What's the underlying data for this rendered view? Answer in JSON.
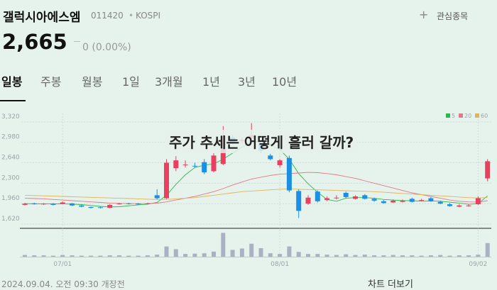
{
  "header": {
    "name": "갤럭시아에스엠",
    "code": "011420",
    "market": "KOSPI",
    "watch": "관심종목",
    "price": "2,665",
    "change": "0 (0.00%)"
  },
  "tabs": [
    "일봉",
    "주봉",
    "월봉",
    "1일",
    "3개월",
    "1년",
    "3년",
    "10년"
  ],
  "footer": {
    "timestamp": "2024.09.04. 오전 09:30 개장전",
    "more": "차트 더보기"
  },
  "chart_data": {
    "type": "candlestick",
    "annotation": "주가 추세는 어떻게 흘러 갈까?",
    "categories": [
      null,
      null,
      null,
      null,
      "07/01",
      null,
      null,
      null,
      null,
      null,
      null,
      null,
      null,
      null,
      null,
      null,
      null,
      null,
      null,
      null,
      null,
      null,
      null,
      null,
      null,
      null,
      null,
      "08/01",
      null,
      null,
      null,
      null,
      null,
      null,
      null,
      null,
      null,
      null,
      null,
      null,
      null,
      null,
      null,
      null,
      null,
      null,
      null,
      null,
      "09/02",
      null
    ],
    "open": [
      1940,
      1965,
      1950,
      1960,
      1960,
      1965,
      1930,
      1905,
      1900,
      1890,
      1950,
      1965,
      1960,
      1955,
      2100,
      2050,
      2550,
      2600,
      2590,
      2650,
      2500,
      2620,
      3060,
      3000,
      3050,
      2960,
      2760,
      2600,
      2720,
      2170,
      1960,
      2160,
      2020,
      2050,
      2140,
      2040,
      2100,
      2040,
      2000,
      1980,
      1990,
      2040,
      2010,
      2050,
      1990,
      1950,
      1910,
      1920,
      1950,
      2380
    ],
    "high": [
      1975,
      1975,
      1970,
      1970,
      1995,
      1970,
      1940,
      1910,
      1910,
      1950,
      1975,
      1975,
      1970,
      1975,
      2200,
      2700,
      2750,
      2680,
      2640,
      2700,
      2800,
      3250,
      3100,
      3060,
      3300,
      2980,
      2790,
      2700,
      2760,
      2200,
      2100,
      2180,
      2080,
      2100,
      2160,
      2100,
      2120,
      2060,
      2020,
      2030,
      2030,
      2060,
      2040,
      2070,
      2010,
      1970,
      1950,
      1950,
      2080,
      2700
    ],
    "low": [
      1930,
      1945,
      1940,
      1930,
      1955,
      1920,
      1900,
      1880,
      1880,
      1885,
      1945,
      1945,
      1940,
      1945,
      2030,
      2040,
      2500,
      2560,
      2560,
      2450,
      2480,
      2600,
      2950,
      2960,
      3020,
      2800,
      2680,
      2560,
      2150,
      1720,
      1940,
      1980,
      2000,
      2030,
      2050,
      2030,
      2030,
      1990,
      1960,
      1970,
      1980,
      1980,
      2000,
      1990,
      1950,
      1910,
      1900,
      1910,
      1940,
      2330
    ],
    "close": [
      1960,
      1950,
      1960,
      1940,
      1980,
      1930,
      1910,
      1890,
      1890,
      1940,
      1960,
      1955,
      1950,
      1965,
      2050,
      2640,
      2680,
      2610,
      2580,
      2480,
      2760,
      3080,
      2980,
      3020,
      3100,
      2840,
      2700,
      2680,
      2180,
      1840,
      2060,
      2000,
      2050,
      2060,
      2070,
      2080,
      2040,
      2010,
      1970,
      2010,
      2010,
      1990,
      2020,
      2000,
      1960,
      1920,
      1930,
      1930,
      2050,
      2665
    ],
    "up_color": "#e8405e",
    "down_color": "#1a8fe3",
    "series": [
      {
        "name": "5",
        "color": "#2db84a",
        "values": [
          1960,
          1958,
          1955,
          1955,
          1958,
          1952,
          1945,
          1930,
          1915,
          1905,
          1910,
          1925,
          1940,
          1952,
          1980,
          2100,
          2280,
          2440,
          2560,
          2600,
          2620,
          2700,
          2800,
          2900,
          2990,
          3000,
          2930,
          2860,
          2700,
          2460,
          2290,
          2150,
          2030,
          2000,
          2050,
          2060,
          2060,
          2050,
          2030,
          2020,
          2010,
          2010,
          2000,
          2005,
          2000,
          1985,
          1970,
          1950,
          1960,
          2090
        ]
      },
      {
        "name": "20",
        "color": "#e07a86",
        "values": [
          2050,
          2045,
          2040,
          2030,
          2020,
          2010,
          2000,
          1990,
          1980,
          1970,
          1965,
          1962,
          1960,
          1962,
          1968,
          1990,
          2020,
          2050,
          2080,
          2120,
          2160,
          2210,
          2270,
          2320,
          2370,
          2400,
          2430,
          2450,
          2460,
          2470,
          2480,
          2475,
          2460,
          2440,
          2410,
          2380,
          2340,
          2300,
          2260,
          2220,
          2180,
          2140,
          2110,
          2080,
          2050,
          2020,
          2000,
          1990,
          1985,
          2010
        ]
      },
      {
        "name": "60",
        "color": "#e0b45a",
        "values": [
          2100,
          2095,
          2090,
          2085,
          2080,
          2075,
          2070,
          2065,
          2060,
          2055,
          2050,
          2045,
          2040,
          2035,
          2030,
          2030,
          2040,
          2050,
          2060,
          2080,
          2100,
          2120,
          2140,
          2160,
          2170,
          2180,
          2190,
          2200,
          2205,
          2200,
          2195,
          2190,
          2185,
          2180,
          2175,
          2170,
          2165,
          2160,
          2150,
          2140,
          2130,
          2120,
          2110,
          2100,
          2090,
          2080,
          2070,
          2060,
          2055,
          2060
        ]
      }
    ],
    "volume": [
      5,
      4,
      4,
      3,
      5,
      4,
      3,
      3,
      3,
      4,
      4,
      3,
      3,
      4,
      6,
      30,
      22,
      8,
      9,
      10,
      15,
      70,
      20,
      24,
      38,
      25,
      10,
      8,
      30,
      14,
      8,
      8,
      6,
      5,
      7,
      5,
      6,
      4,
      4,
      5,
      4,
      4,
      3,
      4,
      5,
      3,
      4,
      4,
      6,
      40
    ],
    "volume_color": "#a9b1c2",
    "vlim": [
      0,
      75
    ],
    "ylim": [
      1550,
      3460
    ],
    "yticks": [
      {
        "value": 1620,
        "label": "1,620"
      },
      {
        "value": 1960,
        "label": "1,960"
      },
      {
        "value": 2300,
        "label": "2,300"
      },
      {
        "value": 2640,
        "label": "2,640"
      },
      {
        "value": 2980,
        "label": "2,980"
      },
      {
        "value": 3320,
        "label": "3,320"
      }
    ],
    "grid": true,
    "legend": "top-right"
  }
}
